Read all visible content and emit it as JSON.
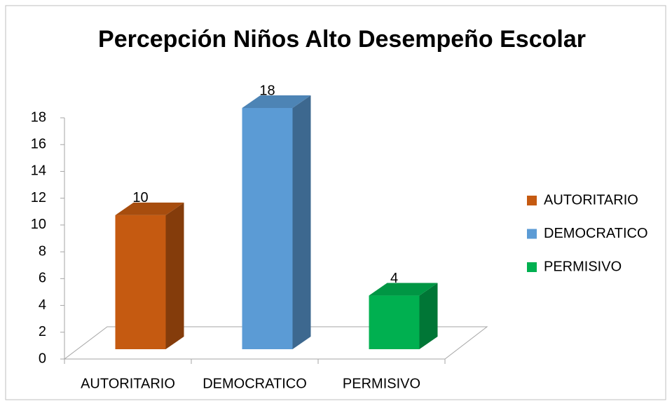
{
  "chart_data": {
    "type": "bar",
    "title": "Percepción Niños Alto Desempeño Escolar",
    "categories": [
      "AUTORITARIO",
      "DEMOCRATICO",
      "PERMISIVO"
    ],
    "values": [
      10,
      18,
      4
    ],
    "colors": [
      "#c55a11",
      "#5b9bd5",
      "#00b050"
    ],
    "ylim": [
      0,
      18
    ],
    "yticks": [
      0,
      2,
      4,
      6,
      8,
      10,
      12,
      14,
      16,
      18
    ],
    "legend": "right",
    "three_d": true
  }
}
